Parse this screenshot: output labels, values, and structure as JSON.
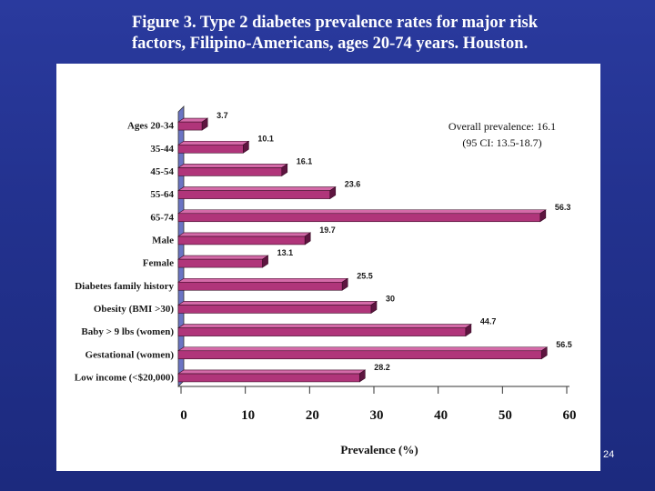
{
  "slide": {
    "title_line1": "Figure 3. Type 2 diabetes prevalence rates for major risk",
    "title_line2": "factors, Filipino-Americans, ages 20-74 years. Houston.",
    "page_number": "24"
  },
  "colors": {
    "background": "#23328f",
    "bar_front": "#b0357a",
    "bar_top": "#d46aa8",
    "bar_side": "#5e1540",
    "wall": "#6b74c4"
  },
  "chart_data": {
    "type": "bar",
    "orientation": "horizontal",
    "categories": [
      "Ages 20-34",
      "35-44",
      "45-54",
      "55-64",
      "65-74",
      "Male",
      "Female",
      "Diabetes family history",
      "Obesity (BMI >30)",
      "Baby > 9 lbs (women)",
      "Gestational (women)",
      "Low income  (<$20,000)"
    ],
    "values": [
      3.7,
      10.1,
      16.1,
      23.6,
      56.3,
      19.7,
      13.1,
      25.5,
      30,
      44.7,
      56.5,
      28.2
    ],
    "value_labels": [
      "3.7",
      "10.1",
      "16.1",
      "23.6",
      "56.3",
      "19.7",
      "13.1",
      "25.5",
      "30",
      "44.7",
      "56.5",
      "28.2"
    ],
    "xlim": [
      0,
      60
    ],
    "xticks": [
      "0",
      "10",
      "20",
      "30",
      "40",
      "50",
      "60"
    ],
    "xlabel": "Prevalence (%)",
    "ylabel": "",
    "annotation_line1": "Overall prevalence: 16.1",
    "annotation_line2": "(95 CI: 13.5-18.7)"
  }
}
